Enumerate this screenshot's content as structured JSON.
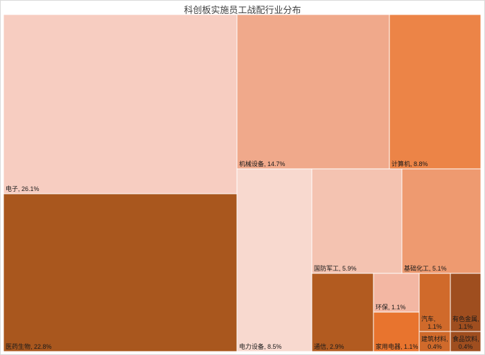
{
  "chart_data": {
    "type": "treemap",
    "title": "科创板实施员工战配行业分布",
    "unit": "%",
    "items": [
      {
        "name": "电子",
        "value": 26.1,
        "label": "电子, 26.1%",
        "color": "#f7cdc1"
      },
      {
        "name": "医药生物",
        "value": 22.8,
        "label": "医药生物, 22.8%",
        "color": "#a9571e"
      },
      {
        "name": "机械设备",
        "value": 14.7,
        "label": "机械设备, 14.7%",
        "color": "#f0a98b"
      },
      {
        "name": "计算机",
        "value": 8.8,
        "label": "计算机, 8.8%",
        "color": "#ec8447"
      },
      {
        "name": "电力设备",
        "value": 8.5,
        "label": "电力设备, 8.5%",
        "color": "#f8d9cf"
      },
      {
        "name": "国防军工",
        "value": 5.9,
        "label": "国防军工, 5.9%",
        "color": "#f4c3b1"
      },
      {
        "name": "基础化工",
        "value": 5.1,
        "label": "基础化工, 5.1%",
        "color": "#ee9a70"
      },
      {
        "name": "通信",
        "value": 2.9,
        "label": "通信, 2.9%",
        "color": "#b25b20"
      },
      {
        "name": "环保",
        "value": 1.1,
        "label": "环保, 1.1%",
        "color": "#f3b7a3"
      },
      {
        "name": "家用电器",
        "value": 1.1,
        "label": "家用电器, 1.1%",
        "color": "#e8742e"
      },
      {
        "name": "汽车",
        "value": 1.1,
        "label": "汽车, 1.1%",
        "color": "#d06a2b"
      },
      {
        "name": "有色金属",
        "value": 1.1,
        "label": "有色金属, 1.1%",
        "color": "#9f4e1f"
      },
      {
        "name": "建筑材料",
        "value": 0.4,
        "label": "建筑材料, 0.4%",
        "color": "#d06a2b"
      },
      {
        "name": "食品饮料",
        "value": 0.4,
        "label": "食品饮料, 0.4%",
        "color": "#9f4e1f"
      }
    ]
  }
}
